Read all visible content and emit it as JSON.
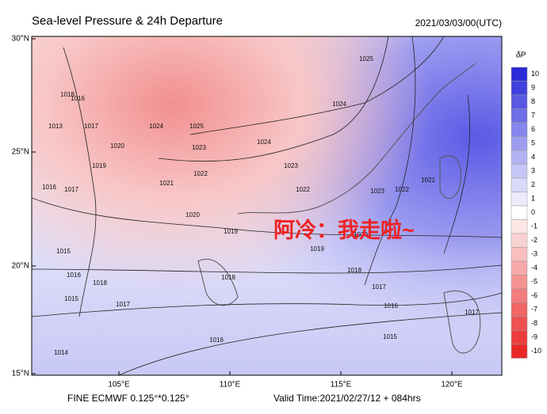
{
  "header": {
    "title": "Sea-level Pressure & 24h Departure",
    "datetime": "2021/03/03/00(UTC)"
  },
  "colorbar": {
    "label": "δP",
    "ticks": [
      "10",
      "9",
      "8",
      "7",
      "6",
      "5",
      "4",
      "3",
      "2",
      "1",
      "0",
      "-1",
      "-2",
      "-3",
      "-4",
      "-5",
      "-6",
      "-7",
      "-8",
      "-9",
      "-10"
    ],
    "colors": [
      "#2a2ad8",
      "#4141de",
      "#5858e3",
      "#6f6fe8",
      "#8686ec",
      "#9d9df0",
      "#b2b2f3",
      "#c6c6f6",
      "#d9d9f9",
      "#ebebfc",
      "#ffffff",
      "#fde6e6",
      "#fbd2d2",
      "#f9bebe",
      "#f7a8a8",
      "#f59292",
      "#f37c7c",
      "#f16666",
      "#ef5050",
      "#ed3c3c",
      "#eb2828"
    ]
  },
  "axes": {
    "lat": [
      "30°N",
      "25°N",
      "20°N",
      "15°N"
    ],
    "lon": [
      "105°E",
      "110°E",
      "115°E",
      "120°E"
    ]
  },
  "contour_labels": [
    "1025",
    "1024",
    "1025",
    "1024",
    "1023",
    "1020",
    "1019",
    "1021",
    "1022",
    "1023",
    "1022",
    "1023",
    "1022",
    "1021",
    "1020",
    "1019",
    "1020",
    "1019",
    "1018",
    "1018",
    "1018",
    "1017",
    "1016",
    "1015",
    "1016",
    "1014",
    "1015",
    "1017",
    "1013",
    "1017",
    "1018",
    "1016",
    "1016",
    "1017",
    "1015",
    "1016",
    "1017",
    "1024"
  ],
  "overlay": "阿冷：我走啦~",
  "footer": {
    "model": "FINE ECMWF 0.125°*0.125°",
    "valid": "Valid Time:2021/02/27/12 + 084hrs"
  }
}
